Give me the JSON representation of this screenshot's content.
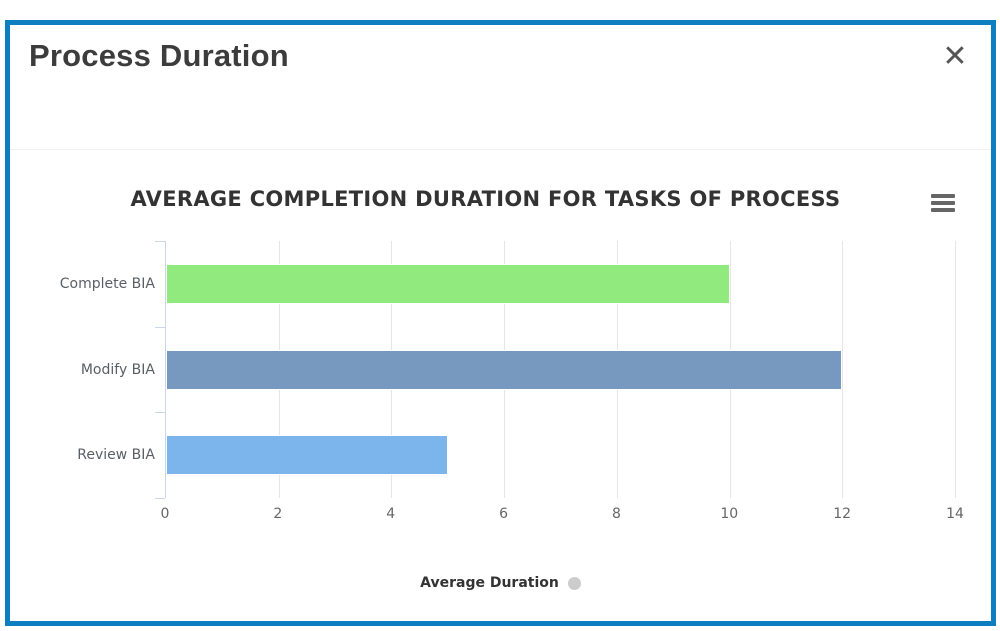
{
  "modal": {
    "title": "Process Duration"
  },
  "icons": {
    "close_icon": "✕",
    "export_menu_icon": "hamburger-menu"
  },
  "colors": {
    "modal_border": "#0d7ec0",
    "gridline": "#e6e6e6",
    "axis_line": "#ccd6eb",
    "axis_label": "#666666",
    "legend_marker": "#cccccc"
  },
  "chart_data": {
    "type": "bar",
    "orientation": "horizontal",
    "title": "AVERAGE COMPLETION DURATION FOR TASKS OF PROCESS",
    "categories": [
      "Complete BIA",
      "Modify BIA",
      "Review BIA"
    ],
    "series": [
      {
        "name": "Average Duration",
        "values": [
          10,
          12,
          5
        ]
      }
    ],
    "bar_colors": [
      "#90ea7e",
      "#7798bf",
      "#7cb5ec"
    ],
    "xlim": [
      0,
      14
    ],
    "x_ticks": [
      0,
      2,
      4,
      6,
      8,
      10,
      12,
      14
    ],
    "xlabel": "",
    "ylabel": "",
    "grid": true,
    "legend_label": "Average Duration",
    "legend_position": "bottom-center",
    "legend_marker_color": "#cccccc"
  }
}
